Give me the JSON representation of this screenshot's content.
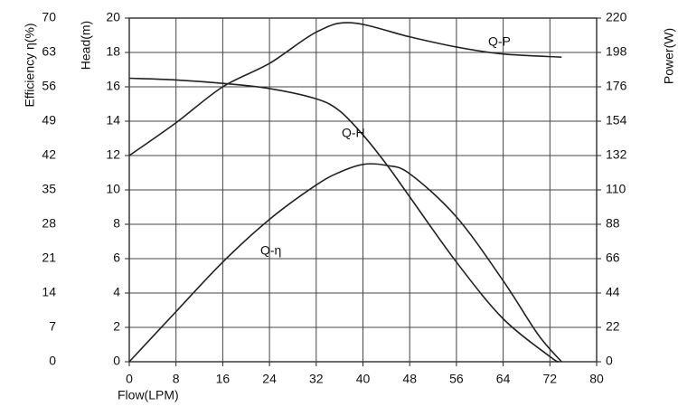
{
  "chart_data": {
    "type": "line",
    "x_label": "Flow(LPM)",
    "y_label": "Head(m)",
    "y2_label": "Power(W)",
    "y3_label": "Efficiency η(%)",
    "xlim": [
      0,
      80
    ],
    "xticks": [
      0,
      8,
      16,
      24,
      32,
      40,
      48,
      56,
      64,
      72,
      80
    ],
    "ylim": [
      0,
      20
    ],
    "yticks": [
      0,
      2,
      4,
      6,
      8,
      10,
      12,
      14,
      16,
      18,
      20
    ],
    "y2lim": [
      0,
      220
    ],
    "y2ticks": [
      0,
      22,
      44,
      66,
      88,
      110,
      132,
      154,
      176,
      198,
      220
    ],
    "y3lim": [
      0,
      70
    ],
    "y3ticks": [
      0,
      7,
      14,
      21,
      28,
      35,
      42,
      49,
      56,
      63,
      70
    ],
    "grid": true,
    "series": [
      {
        "name": "Q-H",
        "color": "#222222",
        "axis": "y",
        "x": [
          0,
          8,
          16,
          24,
          32,
          36,
          40,
          44,
          48,
          56,
          64,
          72,
          73.5
        ],
        "values": [
          16.5,
          16.4,
          16.2,
          15.9,
          15.3,
          14.6,
          13.2,
          11.5,
          9.6,
          5.8,
          2.5,
          0.3,
          0
        ]
      },
      {
        "name": "Q-P",
        "color": "#222222",
        "axis": "y2",
        "x": [
          0,
          8,
          16,
          24,
          32,
          38,
          48,
          56,
          64,
          74
        ],
        "values": [
          132,
          153,
          176,
          191,
          211,
          217,
          208,
          201.5,
          197,
          195
        ]
      },
      {
        "name": "Q-η",
        "color": "#222222",
        "axis": "y3",
        "x": [
          0,
          8,
          16,
          24,
          32,
          36,
          40,
          44,
          48,
          56,
          64,
          70,
          74
        ],
        "values": [
          0,
          10.2,
          20.3,
          29,
          36,
          38.6,
          40.2,
          40,
          38.3,
          29.5,
          16.5,
          5.5,
          0
        ]
      }
    ]
  }
}
